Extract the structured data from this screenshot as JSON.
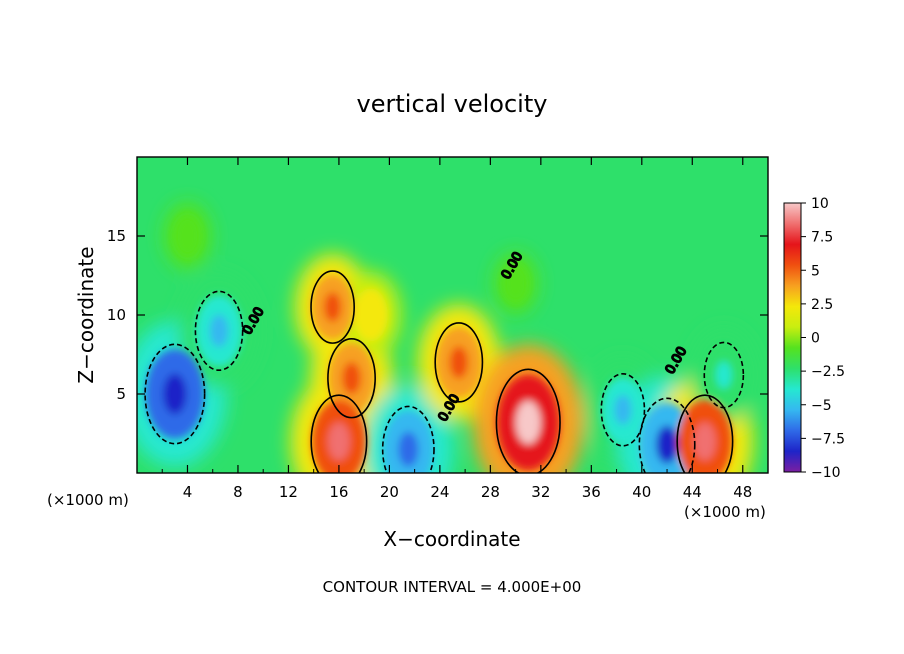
{
  "chart_data": {
    "type": "heatmap",
    "title": "vertical velocity",
    "xlabel": "X−coordinate",
    "ylabel": "Z−coordinate",
    "x_unit_left": "(×1000 m)",
    "x_unit_right": "(×1000 m)",
    "xlim": [
      0,
      50
    ],
    "ylim": [
      0,
      20
    ],
    "x_ticks": [
      "4",
      "8",
      "12",
      "16",
      "20",
      "24",
      "28",
      "32",
      "36",
      "40",
      "44",
      "48"
    ],
    "y_ticks": [
      "5",
      "10",
      "15"
    ],
    "footer": "CONTOUR INTERVAL = 4.000E+00",
    "contour_labels": [
      "0.00",
      "0.00",
      "0.00",
      "0.00"
    ],
    "colorbar": {
      "ticks": [
        "10",
        "7.5",
        "5",
        "2.5",
        "0",
        "−2.5",
        "−5",
        "−7.5",
        "−10"
      ],
      "range": [
        -10,
        10
      ],
      "stops": [
        "#7b1fa2",
        "#1e24c8",
        "#2f6ae8",
        "#35b8f0",
        "#25e8d0",
        "#2ee06a",
        "#55e21f",
        "#c8ee10",
        "#f4e80a",
        "#f7a020",
        "#f05010",
        "#e5141a",
        "#f07070",
        "#f7c8c8"
      ]
    },
    "features": [
      {
        "x": 3,
        "z": 5,
        "w": -9
      },
      {
        "x": 6.5,
        "z": 9,
        "w": -6
      },
      {
        "x": 15.5,
        "z": 10.5,
        "w": 5
      },
      {
        "x": 17,
        "z": 6,
        "w": 6
      },
      {
        "x": 16,
        "z": 2,
        "w": 8
      },
      {
        "x": 18.5,
        "z": 10,
        "w": 3
      },
      {
        "x": 21.5,
        "z": 1.5,
        "w": -7
      },
      {
        "x": 25.5,
        "z": 7,
        "w": 6
      },
      {
        "x": 31,
        "z": 3.2,
        "w": 10
      },
      {
        "x": 38.5,
        "z": 4,
        "w": -5
      },
      {
        "x": 42,
        "z": 1.8,
        "w": -8
      },
      {
        "x": 45,
        "z": 2,
        "w": 8
      },
      {
        "x": 46.5,
        "z": 6.2,
        "w": -4
      },
      {
        "x": 4,
        "z": 15,
        "w": -1
      },
      {
        "x": 30,
        "z": 12,
        "w": -0.5
      }
    ]
  }
}
